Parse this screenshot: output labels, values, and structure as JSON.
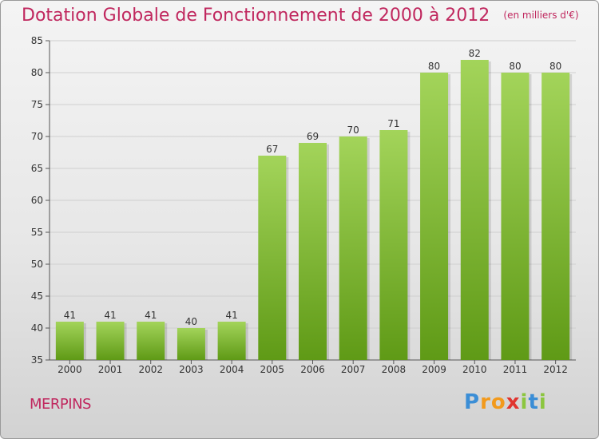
{
  "title": "Dotation Globale de Fonctionnement de 2000 à 2012",
  "unit_note": "(en milliers d'€)",
  "commune": "MERPINS",
  "logo": {
    "text": "Proxiti",
    "letters": [
      "P",
      "r",
      "o",
      "x",
      "i",
      "t",
      "i"
    ]
  },
  "colors": {
    "title": "#c0275e",
    "bar_top": "#a3d45a",
    "bar_bottom": "#5f9a16",
    "axis": "#555555",
    "grid": "#cfcfcf"
  },
  "chart_data": {
    "type": "bar",
    "categories": [
      "2000",
      "2001",
      "2002",
      "2003",
      "2004",
      "2005",
      "2006",
      "2007",
      "2008",
      "2009",
      "2010",
      "2011",
      "2012"
    ],
    "values": [
      41,
      41,
      41,
      40,
      41,
      67,
      69,
      70,
      71,
      80,
      82,
      80,
      80
    ],
    "ylim": [
      35,
      85
    ],
    "yticks": [
      35,
      40,
      45,
      50,
      55,
      60,
      65,
      70,
      75,
      80,
      85
    ],
    "xlabel": "",
    "ylabel": "",
    "grid": true
  }
}
